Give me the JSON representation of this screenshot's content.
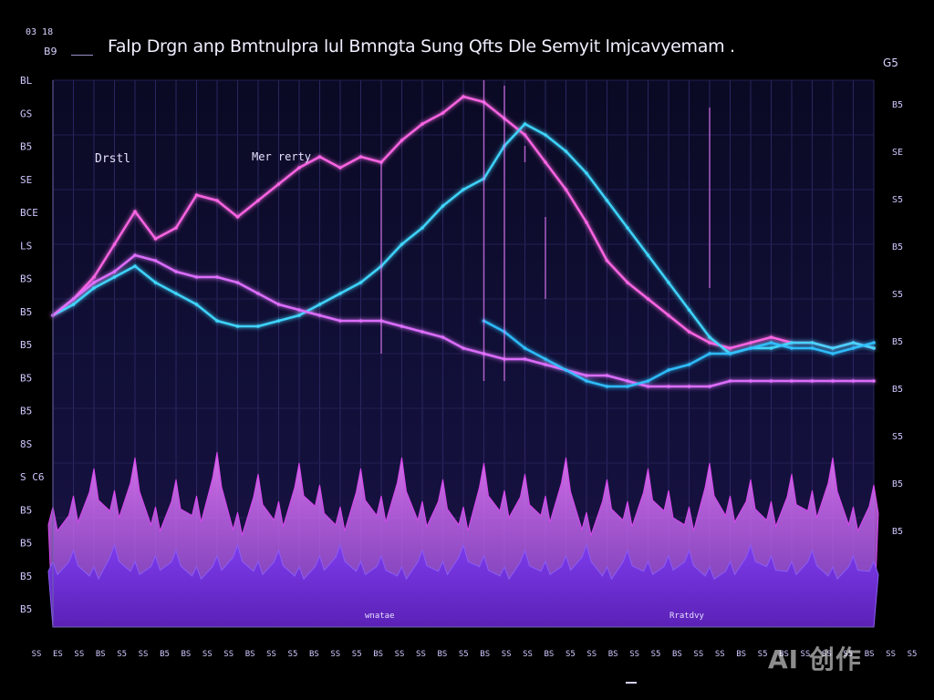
{
  "header": {
    "title": "Falp Drgn anp Bmtnulpra lul Bmngta Sung Qfts Dle Semyit lmjcavyemam .",
    "corner_left_top": "03 18",
    "corner_left_mid": "B9",
    "corner_right": "G5"
  },
  "watermark": "AI 创作",
  "chart_data": {
    "type": "line",
    "title": "Falp Drgn anp Bmtnulpra lul Bmngta Sung Qfts Dle Semyit lmjcavyemam .",
    "annotations": [
      {
        "text": "Drstl"
      },
      {
        "text": "Mer rerty"
      },
      {
        "text": "wnatae"
      },
      {
        "text": "Rratdvy"
      }
    ],
    "y_ticks_left": [
      "BL",
      "GS",
      "B5",
      "SE",
      "BCE",
      "LS",
      "BS",
      "B5",
      "B5",
      "B5",
      "B5",
      "8S",
      "S C6",
      "B5",
      "B5",
      "B5",
      "B5"
    ],
    "y_ticks_right": [
      "B5",
      "SE",
      "S5",
      "B5",
      "S5",
      "B5",
      "B5",
      "S5",
      "B5",
      "B5"
    ],
    "x_ticks": [
      "SS",
      "ES",
      "SS",
      "BS",
      "S5",
      "SS",
      "B5",
      "BS",
      "SS",
      "SS",
      "BS",
      "SS",
      "S5",
      "BS",
      "SS",
      "S5",
      "BS",
      "SS",
      "SS",
      "BS",
      "S5",
      "BS",
      "SS",
      "SS",
      "BS",
      "S5",
      "SS",
      "BS",
      "SS",
      "S5",
      "BS",
      "SS",
      "SS",
      "BS",
      "S5",
      "BS",
      "SS",
      "SS",
      "S5",
      "BS",
      "SS",
      "S5"
    ],
    "ylim": [
      0,
      100
    ],
    "grid": true,
    "x": [
      0,
      1,
      2,
      3,
      4,
      5,
      6,
      7,
      8,
      9,
      10,
      11,
      12,
      13,
      14,
      15,
      16,
      17,
      18,
      19,
      20,
      21,
      22,
      23,
      24,
      25,
      26,
      27,
      28,
      29,
      30,
      31,
      32,
      33,
      34,
      35,
      36,
      37,
      38,
      39,
      40
    ],
    "series": [
      {
        "color": "#ff66e6",
        "values": [
          57,
          60,
          64,
          70,
          76,
          71,
          73,
          79,
          78,
          75,
          78,
          81,
          84,
          86,
          84,
          86,
          85,
          89,
          92,
          94,
          97,
          96,
          93,
          90,
          85,
          80,
          74,
          67,
          63,
          60,
          57,
          54,
          52,
          51,
          52,
          53,
          52,
          52,
          51,
          52,
          51
        ]
      },
      {
        "color": "#40d8ff",
        "values": [
          57,
          59,
          62,
          64,
          66,
          63,
          61,
          59,
          56,
          55,
          55,
          56,
          57,
          59,
          61,
          63,
          66,
          70,
          73,
          77,
          80,
          82,
          88,
          92,
          90,
          87,
          83,
          78,
          73,
          68,
          63,
          58,
          53,
          50,
          51,
          51,
          52,
          52,
          51,
          52,
          51
        ]
      },
      {
        "color": "#e070ff",
        "values": [
          57,
          60,
          63,
          65,
          68,
          67,
          65,
          64,
          64,
          63,
          61,
          59,
          58,
          57,
          56,
          56,
          56,
          55,
          54,
          53,
          51,
          50,
          49,
          49,
          48,
          47,
          46,
          46,
          45,
          44,
          44,
          44,
          44,
          45,
          45,
          45,
          45,
          45,
          45,
          45,
          45
        ]
      },
      {
        "color": "#30c0ff",
        "values": [
          null,
          null,
          null,
          null,
          null,
          null,
          null,
          null,
          null,
          null,
          null,
          null,
          null,
          null,
          null,
          null,
          null,
          null,
          null,
          null,
          null,
          56,
          54,
          51,
          49,
          47,
          45,
          44,
          44,
          45,
          47,
          48,
          50,
          50,
          51,
          52,
          51,
          51,
          50,
          51,
          52
        ]
      }
    ],
    "area_series": [
      {
        "color": "#d946ef",
        "values": [
          22,
          24,
          29,
          25,
          31,
          22,
          27,
          24,
          32,
          21,
          28,
          23,
          30,
          26,
          22,
          29,
          24,
          31,
          23,
          27,
          22,
          30,
          25,
          28,
          24,
          31,
          21,
          27,
          23,
          29,
          25,
          22,
          30,
          24,
          27,
          23,
          28,
          25,
          31,
          22,
          26
        ]
      },
      {
        "color": "#8b5cf6",
        "values": [
          12,
          14,
          11,
          15,
          12,
          13,
          14,
          11,
          13,
          15,
          12,
          14,
          11,
          13,
          15,
          12,
          13,
          11,
          14,
          12,
          15,
          13,
          11,
          14,
          12,
          13,
          15,
          11,
          14,
          12,
          13,
          14,
          11,
          12,
          15,
          13,
          12,
          14,
          11,
          13,
          12
        ]
      }
    ]
  }
}
